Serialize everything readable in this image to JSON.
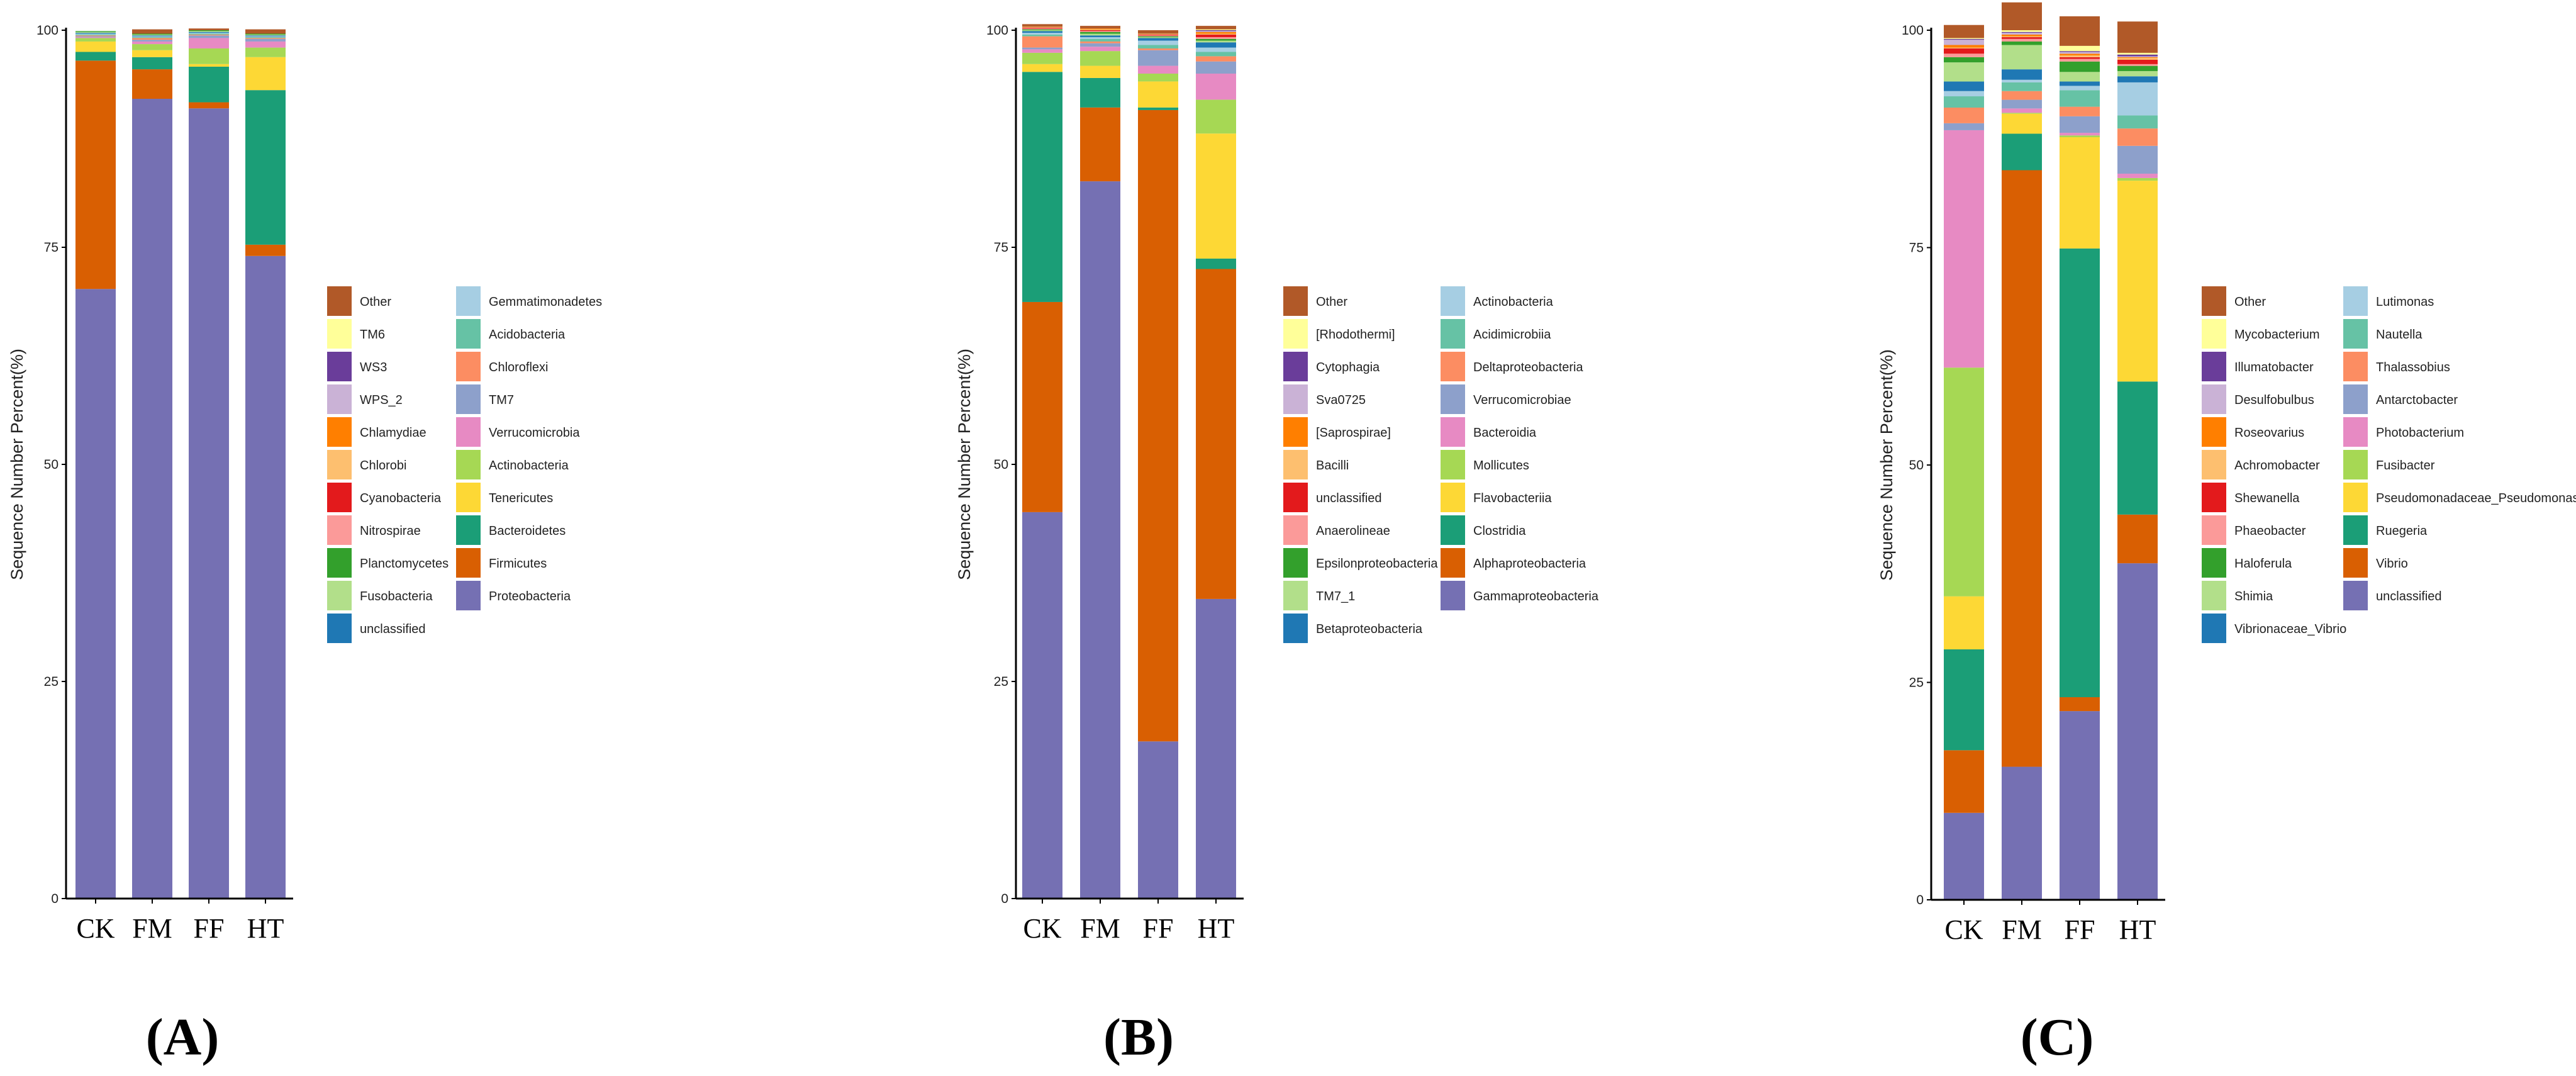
{
  "chart_data": [
    {
      "type": "bar",
      "stacked": true,
      "panel_label": "(A)",
      "ylabel": "Sequence Number Percent(%)",
      "ylim": [
        0,
        100
      ],
      "yticks": [
        0,
        25,
        50,
        75,
        100
      ],
      "categories": [
        "CK",
        "FM",
        "FF",
        "HT"
      ],
      "series": [
        {
          "name": "Proteobacteria",
          "color": "#7570b3",
          "values": [
            70.2,
            92.1,
            91.0,
            74.0
          ]
        },
        {
          "name": "Firmicutes",
          "color": "#d95f02",
          "values": [
            26.3,
            3.4,
            0.7,
            1.3
          ]
        },
        {
          "name": "Bacteroidetes",
          "color": "#1b9e77",
          "values": [
            1.0,
            1.4,
            4.1,
            17.8
          ]
        },
        {
          "name": "Tenericutes",
          "color": "#fdd835",
          "values": [
            1.2,
            0.8,
            0.3,
            3.8
          ]
        },
        {
          "name": "Actinobacteria",
          "color": "#a6d854",
          "values": [
            0.4,
            0.7,
            1.8,
            1.1
          ]
        },
        {
          "name": "Verrucomicrobia",
          "color": "#e78ac3",
          "values": [
            0.1,
            0.3,
            1.2,
            0.7
          ]
        },
        {
          "name": "TM7",
          "color": "#8da0cb",
          "values": [
            0.1,
            0.2,
            0.3,
            0.3
          ]
        },
        {
          "name": "Chloroflexi",
          "color": "#fc8d62",
          "values": [
            0.1,
            0.2,
            0.1,
            0.1
          ]
        },
        {
          "name": "Acidobacteria",
          "color": "#66c2a5",
          "values": [
            0.1,
            0.1,
            0.1,
            0.1
          ]
        },
        {
          "name": "Gemmatimonadetes",
          "color": "#a6cee3",
          "values": [
            0.1,
            0.1,
            0.1,
            0.1
          ]
        },
        {
          "name": "unclassified",
          "color": "#1f78b4",
          "values": [
            0.1,
            0.1,
            0.1,
            0.1
          ]
        },
        {
          "name": "Fusobacteria",
          "color": "#b2df8a",
          "values": [
            0.1,
            0.1,
            0.1,
            0.1
          ]
        },
        {
          "name": "Planctomycetes",
          "color": "#33a02c",
          "values": [
            0.1,
            0.1,
            0.1,
            0.1
          ]
        },
        {
          "name": "Nitrospirae",
          "color": "#fb9a99",
          "values": [
            0.0,
            0.0,
            0.0,
            0.0
          ]
        },
        {
          "name": "Cyanobacteria",
          "color": "#e31a1c",
          "values": [
            0.0,
            0.0,
            0.0,
            0.0
          ]
        },
        {
          "name": "Chlorobi",
          "color": "#fdbf6f",
          "values": [
            0.0,
            0.0,
            0.0,
            0.0
          ]
        },
        {
          "name": "Chlamydiae",
          "color": "#ff7f00",
          "values": [
            0.0,
            0.0,
            0.0,
            0.0
          ]
        },
        {
          "name": "WPS_2",
          "color": "#cab2d6",
          "values": [
            0.0,
            0.0,
            0.0,
            0.0
          ]
        },
        {
          "name": "WS3",
          "color": "#6a3d9a",
          "values": [
            0.0,
            0.0,
            0.0,
            0.0
          ]
        },
        {
          "name": "TM6",
          "color": "#ffff99",
          "values": [
            0.0,
            0.0,
            0.0,
            0.0
          ]
        },
        {
          "name": "Other",
          "color": "#b15928",
          "values": [
            0.0,
            0.5,
            0.2,
            0.5
          ]
        }
      ],
      "legend_order": [
        "Other",
        "TM6",
        "WS3",
        "WPS_2",
        "Chlamydiae",
        "Chlorobi",
        "Cyanobacteria",
        "Nitrospirae",
        "Planctomycetes",
        "Fusobacteria",
        "unclassified",
        "Gemmatimonadetes",
        "Acidobacteria",
        "Chloroflexi",
        "TM7",
        "Verrucomicrobia",
        "Actinobacteria",
        "Tenericutes",
        "Bacteroidetes",
        "Firmicutes",
        "Proteobacteria"
      ]
    },
    {
      "type": "bar",
      "stacked": true,
      "panel_label": "(B)",
      "ylabel": "Sequence Number Percent(%)",
      "ylim": [
        0,
        100
      ],
      "yticks": [
        0,
        25,
        50,
        75,
        100
      ],
      "categories": [
        "CK",
        "FM",
        "FF",
        "HT"
      ],
      "series": [
        {
          "name": "Gammaproteobacteria",
          "color": "#7570b3",
          "values": [
            44.5,
            82.6,
            18.1,
            34.5
          ]
        },
        {
          "name": "Alphaproteobacteria",
          "color": "#d95f02",
          "values": [
            24.2,
            8.5,
            72.7,
            38.0
          ]
        },
        {
          "name": "Clostridia",
          "color": "#1b9e77",
          "values": [
            26.5,
            3.4,
            0.3,
            1.2
          ]
        },
        {
          "name": "Flavobacteriia",
          "color": "#fdd835",
          "values": [
            0.9,
            1.4,
            3.0,
            14.4
          ]
        },
        {
          "name": "Mollicutes",
          "color": "#a6d854",
          "values": [
            1.3,
            1.7,
            0.9,
            3.9
          ]
        },
        {
          "name": "Bacteroidia",
          "color": "#e78ac3",
          "values": [
            0.4,
            0.5,
            0.9,
            3.0
          ]
        },
        {
          "name": "Verrucomicrobiae",
          "color": "#8da0cb",
          "values": [
            0.2,
            0.4,
            1.8,
            1.4
          ]
        },
        {
          "name": "Deltaproteobacteria",
          "color": "#fc8d62",
          "values": [
            1.3,
            0.2,
            0.2,
            0.6
          ]
        },
        {
          "name": "Acidimicrobiia",
          "color": "#66c2a5",
          "values": [
            0.2,
            0.3,
            0.4,
            0.5
          ]
        },
        {
          "name": "Actinobacteria",
          "color": "#a6cee3",
          "values": [
            0.2,
            0.2,
            0.5,
            0.5
          ]
        },
        {
          "name": "Betaproteobacteria",
          "color": "#1f78b4",
          "values": [
            0.2,
            0.2,
            0.3,
            0.6
          ]
        },
        {
          "name": "TM7_1",
          "color": "#b2df8a",
          "values": [
            0.1,
            0.2,
            0.1,
            0.2
          ]
        },
        {
          "name": "Epsilonproteobacteria",
          "color": "#33a02c",
          "values": [
            0.1,
            0.2,
            0.1,
            0.2
          ]
        },
        {
          "name": "Anaerolineae",
          "color": "#fb9a99",
          "values": [
            0.1,
            0.1,
            0.1,
            0.2
          ]
        },
        {
          "name": "unclassified",
          "color": "#e31a1c",
          "values": [
            0.1,
            0.1,
            0.1,
            0.3
          ]
        },
        {
          "name": "Bacilli",
          "color": "#fdbf6f",
          "values": [
            0.1,
            0.1,
            0.1,
            0.1
          ]
        },
        {
          "name": "[Saprospirae]",
          "color": "#ff7f00",
          "values": [
            0.0,
            0.1,
            0.0,
            0.2
          ]
        },
        {
          "name": "Sva0725",
          "color": "#cab2d6",
          "values": [
            0.0,
            0.0,
            0.0,
            0.1
          ]
        },
        {
          "name": "Cytophagia",
          "color": "#6a3d9a",
          "values": [
            0.0,
            0.0,
            0.0,
            0.1
          ]
        },
        {
          "name": "[Rhodothermi]",
          "color": "#ffff99",
          "values": [
            0.0,
            0.0,
            0.0,
            0.1
          ]
        },
        {
          "name": "Other",
          "color": "#b15928",
          "values": [
            0.3,
            0.3,
            0.4,
            0.4
          ]
        }
      ],
      "legend_order": [
        "Other",
        "[Rhodothermi]",
        "Cytophagia",
        "Sva0725",
        "[Saprospirae]",
        "Bacilli",
        "unclassified",
        "Anaerolineae",
        "Epsilonproteobacteria",
        "TM7_1",
        "Betaproteobacteria",
        "Actinobacteria",
        "Acidimicrobiia",
        "Deltaproteobacteria",
        "Verrucomicrobiae",
        "Bacteroidia",
        "Mollicutes",
        "Flavobacteriia",
        "Clostridia",
        "Alphaproteobacteria",
        "Gammaproteobacteria"
      ]
    },
    {
      "type": "bar",
      "stacked": true,
      "panel_label": "(C)",
      "ylabel": "Sequence Number Percent(%)",
      "ylim": [
        0,
        100
      ],
      "yticks": [
        0,
        25,
        50,
        75,
        100
      ],
      "categories": [
        "CK",
        "FM",
        "FF",
        "HT"
      ],
      "series": [
        {
          "name": "unclassified",
          "color": "#7570b3",
          "values": [
            10.0,
            15.3,
            21.7,
            38.7
          ]
        },
        {
          "name": "Vibrio",
          "color": "#d95f02",
          "values": [
            7.2,
            68.6,
            1.6,
            5.6
          ]
        },
        {
          "name": "Ruegeria",
          "color": "#1b9e77",
          "values": [
            11.6,
            4.2,
            51.6,
            15.3
          ]
        },
        {
          "name": "Pseudomonadaceae_Pseudomonas",
          "color": "#fdd835",
          "values": [
            6.1,
            2.3,
            12.8,
            23.1
          ]
        },
        {
          "name": "Fusibacter",
          "color": "#a6d854",
          "values": [
            26.3,
            0.1,
            0.2,
            0.3
          ]
        },
        {
          "name": "Photobacterium",
          "color": "#e78ac3",
          "values": [
            27.3,
            0.5,
            0.3,
            0.5
          ]
        },
        {
          "name": "Antarctobacter",
          "color": "#8da0cb",
          "values": [
            0.8,
            1.0,
            1.9,
            3.2
          ]
        },
        {
          "name": "Thalassobius",
          "color": "#fc8d62",
          "values": [
            1.8,
            1.0,
            1.1,
            2.0
          ]
        },
        {
          "name": "Nautella",
          "color": "#66c2a5",
          "values": [
            1.3,
            1.0,
            1.9,
            1.5
          ]
        },
        {
          "name": "Lutimonas",
          "color": "#a6cee3",
          "values": [
            0.6,
            0.3,
            0.5,
            3.8
          ]
        },
        {
          "name": "Vibrionaceae_Vibrio",
          "color": "#1f78b4",
          "values": [
            1.1,
            1.2,
            0.5,
            0.7
          ]
        },
        {
          "name": "Shimia",
          "color": "#b2df8a",
          "values": [
            2.2,
            2.8,
            1.1,
            0.6
          ]
        },
        {
          "name": "Haloferula",
          "color": "#33a02c",
          "values": [
            0.6,
            0.4,
            1.2,
            0.6
          ]
        },
        {
          "name": "Phaeobacter",
          "color": "#fb9a99",
          "values": [
            0.4,
            0.3,
            0.3,
            0.2
          ]
        },
        {
          "name": "Shewanella",
          "color": "#e31a1c",
          "values": [
            0.6,
            0.2,
            0.2,
            0.5
          ]
        },
        {
          "name": "Achromobacter",
          "color": "#fdbf6f",
          "values": [
            0.1,
            0.1,
            0.2,
            0.2
          ]
        },
        {
          "name": "Roseovarius",
          "color": "#ff7f00",
          "values": [
            0.3,
            0.2,
            0.2,
            0.1
          ]
        },
        {
          "name": "Desulfobulbus",
          "color": "#cab2d6",
          "values": [
            0.6,
            0.2,
            0.2,
            0.1
          ]
        },
        {
          "name": "Illumatobacter",
          "color": "#6a3d9a",
          "values": [
            0.1,
            0.1,
            0.1,
            0.2
          ]
        },
        {
          "name": "Mycobacterium",
          "color": "#ffff99",
          "values": [
            0.1,
            0.2,
            0.6,
            0.2
          ]
        },
        {
          "name": "Other",
          "color": "#b15928",
          "values": [
            1.5,
            3.2,
            3.4,
            3.6
          ]
        }
      ],
      "legend_order": [
        "Other",
        "Mycobacterium",
        "Illumatobacter",
        "Desulfobulbus",
        "Roseovarius",
        "Achromobacter",
        "Shewanella",
        "Phaeobacter",
        "Haloferula",
        "Shimia",
        "Vibrionaceae_Vibrio",
        "Lutimonas",
        "Nautella",
        "Thalassobius",
        "Antarctobacter",
        "Photobacterium",
        "Fusibacter",
        "Pseudomonadaceae_Pseudomonas",
        "Ruegeria",
        "Vibrio",
        "unclassified"
      ]
    }
  ]
}
